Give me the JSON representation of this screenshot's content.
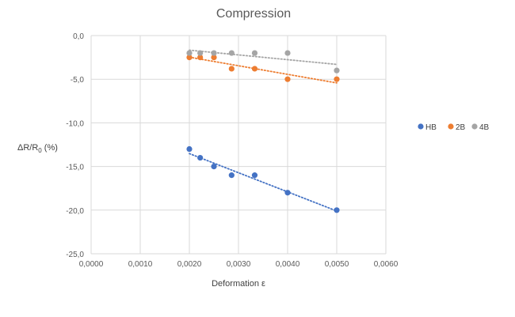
{
  "chart_data": {
    "type": "scatter",
    "title": "Compression",
    "xlabel": "Deformation ε",
    "ylabel_main": "ΔR/R",
    "ylabel_sub": "0",
    "ylabel_tail": " (%)",
    "xlim": [
      0,
      0.006
    ],
    "ylim": [
      -25,
      0
    ],
    "x_ticks": [
      "0,0000",
      "0,0010",
      "0,0020",
      "0,0030",
      "0,0040",
      "0,0050",
      "0,0060"
    ],
    "y_ticks": [
      "0,0",
      "-5,0",
      "-10,0",
      "-15,0",
      "-20,0",
      "-25,0"
    ],
    "grid": true,
    "legend_position": "right",
    "trendline": "linear-dotted",
    "series": [
      {
        "name": "HB",
        "color": "#4472C4",
        "x": [
          0.002,
          0.00222,
          0.0025,
          0.00286,
          0.00333,
          0.004,
          0.005
        ],
        "y": [
          -13,
          -14,
          -15,
          -16,
          -16,
          -18,
          -20
        ]
      },
      {
        "name": "2B",
        "color": "#ED7D31",
        "x": [
          0.002,
          0.00222,
          0.0025,
          0.00286,
          0.00333,
          0.004,
          0.005
        ],
        "y": [
          -2.5,
          -2.5,
          -2.5,
          -3.8,
          -3.8,
          -5.0,
          -5.0
        ]
      },
      {
        "name": "4B",
        "color": "#A5A5A5",
        "x": [
          0.002,
          0.00222,
          0.0025,
          0.00286,
          0.00333,
          0.004,
          0.005
        ],
        "y": [
          -2.0,
          -2.0,
          -2.0,
          -2.0,
          -2.0,
          -2.0,
          -4.0
        ]
      }
    ]
  }
}
